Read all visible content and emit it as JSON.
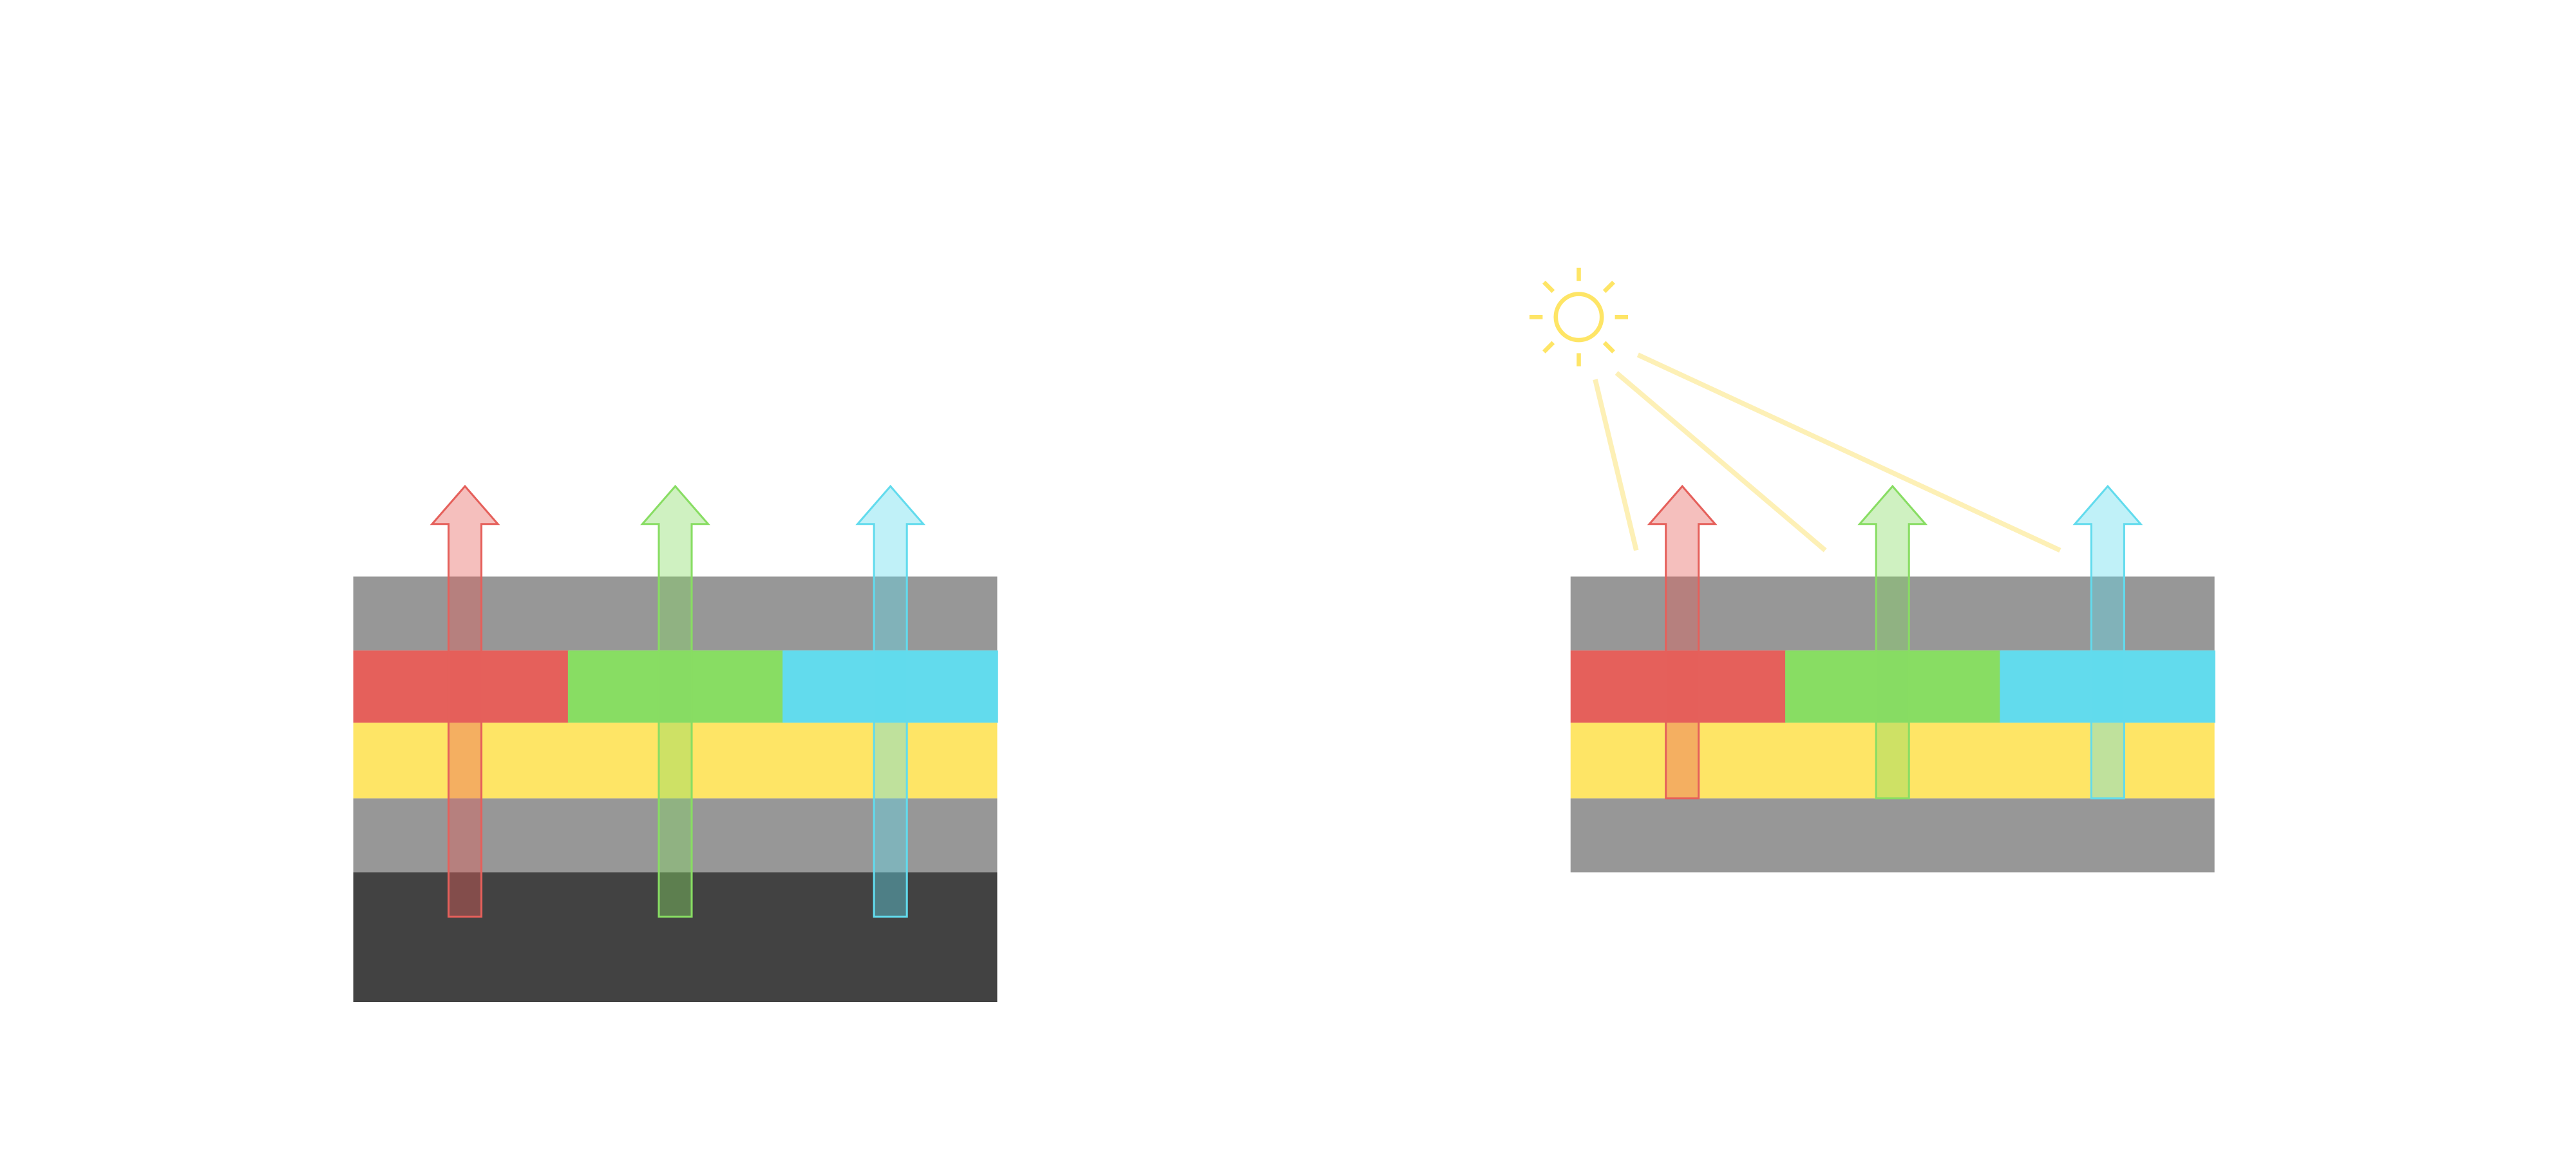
{
  "colors": {
    "background": "#ffffff",
    "gray_layer": "#979797",
    "dark_layer": "#424242",
    "red": "#e5605b",
    "green": "#88dd63",
    "cyan": "#62dbed",
    "yellow": "#fee566",
    "light_ray": "#fdf0b6"
  },
  "diagrams": [
    {
      "name": "left-stack",
      "layers": [
        "gray",
        "color-filter",
        "yellow",
        "gray",
        "dark"
      ],
      "arrows": [
        "red",
        "green",
        "cyan"
      ],
      "light_source": false
    },
    {
      "name": "right-stack",
      "layers": [
        "gray",
        "color-filter",
        "yellow",
        "gray"
      ],
      "arrows": [
        "red",
        "green",
        "cyan"
      ],
      "light_source": true
    }
  ],
  "icons": {
    "sun": "sun-icon"
  }
}
